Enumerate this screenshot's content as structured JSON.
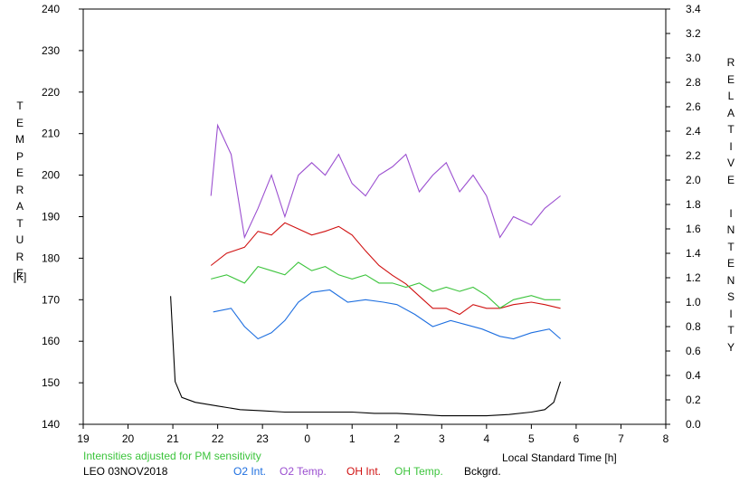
{
  "chart_data": {
    "type": "line",
    "left_axis_label": "TEMPERATURE",
    "left_axis_unit": "[K]",
    "right_axis_label": "RELATIVE INTENSITY",
    "xlabel": "Local Standard Time [h]",
    "note": "Intensities adjusted for PM sensitivity",
    "station_date": "LEO 03NOV2018",
    "x_ticks": [
      "19",
      "20",
      "21",
      "22",
      "23",
      "0",
      "1",
      "2",
      "3",
      "4",
      "5",
      "6",
      "7",
      "8"
    ],
    "x_range_hours_after_19": [
      0,
      13
    ],
    "y_left_ticks": [
      140,
      150,
      160,
      170,
      180,
      190,
      200,
      210,
      220,
      230,
      240
    ],
    "y_left_range": [
      140,
      240
    ],
    "y_right_ticks": [
      "0.0",
      "0.2",
      "0.4",
      "0.6",
      "0.8",
      "1.0",
      "1.2",
      "1.4",
      "1.6",
      "1.8",
      "2.0",
      "2.2",
      "2.4",
      "2.6",
      "2.8",
      "3.0",
      "3.2",
      "3.4"
    ],
    "y_right_range": [
      0.0,
      3.4
    ],
    "grid": false,
    "series": [
      {
        "name": "O2 Int.",
        "color": "#1e6fe0",
        "axis": "right",
        "points": [
          [
            21.9,
            0.92
          ],
          [
            22.3,
            0.95
          ],
          [
            22.6,
            0.8
          ],
          [
            22.9,
            0.7
          ],
          [
            23.2,
            0.75
          ],
          [
            23.5,
            0.85
          ],
          [
            23.8,
            1.0
          ],
          [
            0.1,
            1.08
          ],
          [
            0.5,
            1.1
          ],
          [
            0.9,
            1.0
          ],
          [
            1.3,
            1.02
          ],
          [
            1.7,
            1.0
          ],
          [
            2.0,
            0.98
          ],
          [
            2.4,
            0.9
          ],
          [
            2.8,
            0.8
          ],
          [
            3.2,
            0.85
          ],
          [
            3.5,
            0.82
          ],
          [
            3.9,
            0.78
          ],
          [
            4.3,
            0.72
          ],
          [
            4.6,
            0.7
          ],
          [
            5.0,
            0.75
          ],
          [
            5.4,
            0.78
          ],
          [
            5.65,
            0.7
          ]
        ]
      },
      {
        "name": "O2 Temp.",
        "color": "#9b4fd0",
        "axis": "left",
        "points": [
          [
            21.85,
            195
          ],
          [
            22.0,
            212
          ],
          [
            22.3,
            205
          ],
          [
            22.6,
            185
          ],
          [
            22.9,
            192
          ],
          [
            23.2,
            200
          ],
          [
            23.5,
            190
          ],
          [
            23.8,
            200
          ],
          [
            0.1,
            203
          ],
          [
            0.4,
            200
          ],
          [
            0.7,
            205
          ],
          [
            1.0,
            198
          ],
          [
            1.3,
            195
          ],
          [
            1.6,
            200
          ],
          [
            1.9,
            202
          ],
          [
            2.2,
            205
          ],
          [
            2.5,
            196
          ],
          [
            2.8,
            200
          ],
          [
            3.1,
            203
          ],
          [
            3.4,
            196
          ],
          [
            3.7,
            200
          ],
          [
            4.0,
            195
          ],
          [
            4.3,
            185
          ],
          [
            4.6,
            190
          ],
          [
            5.0,
            188
          ],
          [
            5.3,
            192
          ],
          [
            5.65,
            195
          ]
        ]
      },
      {
        "name": "OH Int.",
        "color": "#d01010",
        "axis": "right",
        "points": [
          [
            21.85,
            1.3
          ],
          [
            22.2,
            1.4
          ],
          [
            22.6,
            1.45
          ],
          [
            22.9,
            1.58
          ],
          [
            23.2,
            1.55
          ],
          [
            23.5,
            1.65
          ],
          [
            23.8,
            1.6
          ],
          [
            0.1,
            1.55
          ],
          [
            0.4,
            1.58
          ],
          [
            0.7,
            1.62
          ],
          [
            1.0,
            1.55
          ],
          [
            1.3,
            1.42
          ],
          [
            1.6,
            1.3
          ],
          [
            1.9,
            1.22
          ],
          [
            2.2,
            1.15
          ],
          [
            2.5,
            1.05
          ],
          [
            2.8,
            0.95
          ],
          [
            3.1,
            0.95
          ],
          [
            3.4,
            0.9
          ],
          [
            3.7,
            0.98
          ],
          [
            4.0,
            0.95
          ],
          [
            4.3,
            0.95
          ],
          [
            4.6,
            0.98
          ],
          [
            5.0,
            1.0
          ],
          [
            5.3,
            0.98
          ],
          [
            5.65,
            0.95
          ]
        ]
      },
      {
        "name": "OH Temp.",
        "color": "#3cc43c",
        "axis": "left",
        "points": [
          [
            21.85,
            175
          ],
          [
            22.2,
            176
          ],
          [
            22.6,
            174
          ],
          [
            22.9,
            178
          ],
          [
            23.2,
            177
          ],
          [
            23.5,
            176
          ],
          [
            23.8,
            179
          ],
          [
            0.1,
            177
          ],
          [
            0.4,
            178
          ],
          [
            0.7,
            176
          ],
          [
            1.0,
            175
          ],
          [
            1.3,
            176
          ],
          [
            1.6,
            174
          ],
          [
            1.9,
            174
          ],
          [
            2.2,
            173
          ],
          [
            2.5,
            174
          ],
          [
            2.8,
            172
          ],
          [
            3.1,
            173
          ],
          [
            3.4,
            172
          ],
          [
            3.7,
            173
          ],
          [
            4.0,
            171
          ],
          [
            4.3,
            168
          ],
          [
            4.6,
            170
          ],
          [
            5.0,
            171
          ],
          [
            5.3,
            170
          ],
          [
            5.65,
            170
          ]
        ]
      },
      {
        "name": "Bckgrd.",
        "color": "#000000",
        "axis": "right",
        "points": [
          [
            20.95,
            1.05
          ],
          [
            21.0,
            0.7
          ],
          [
            21.05,
            0.35
          ],
          [
            21.2,
            0.22
          ],
          [
            21.5,
            0.18
          ],
          [
            22.0,
            0.15
          ],
          [
            22.5,
            0.12
          ],
          [
            23.0,
            0.11
          ],
          [
            23.5,
            0.1
          ],
          [
            0.0,
            0.1
          ],
          [
            0.5,
            0.1
          ],
          [
            1.0,
            0.1
          ],
          [
            1.5,
            0.09
          ],
          [
            2.0,
            0.09
          ],
          [
            2.5,
            0.08
          ],
          [
            3.0,
            0.07
          ],
          [
            3.5,
            0.07
          ],
          [
            4.0,
            0.07
          ],
          [
            4.5,
            0.08
          ],
          [
            5.0,
            0.1
          ],
          [
            5.3,
            0.12
          ],
          [
            5.5,
            0.18
          ],
          [
            5.65,
            0.35
          ]
        ]
      }
    ]
  }
}
